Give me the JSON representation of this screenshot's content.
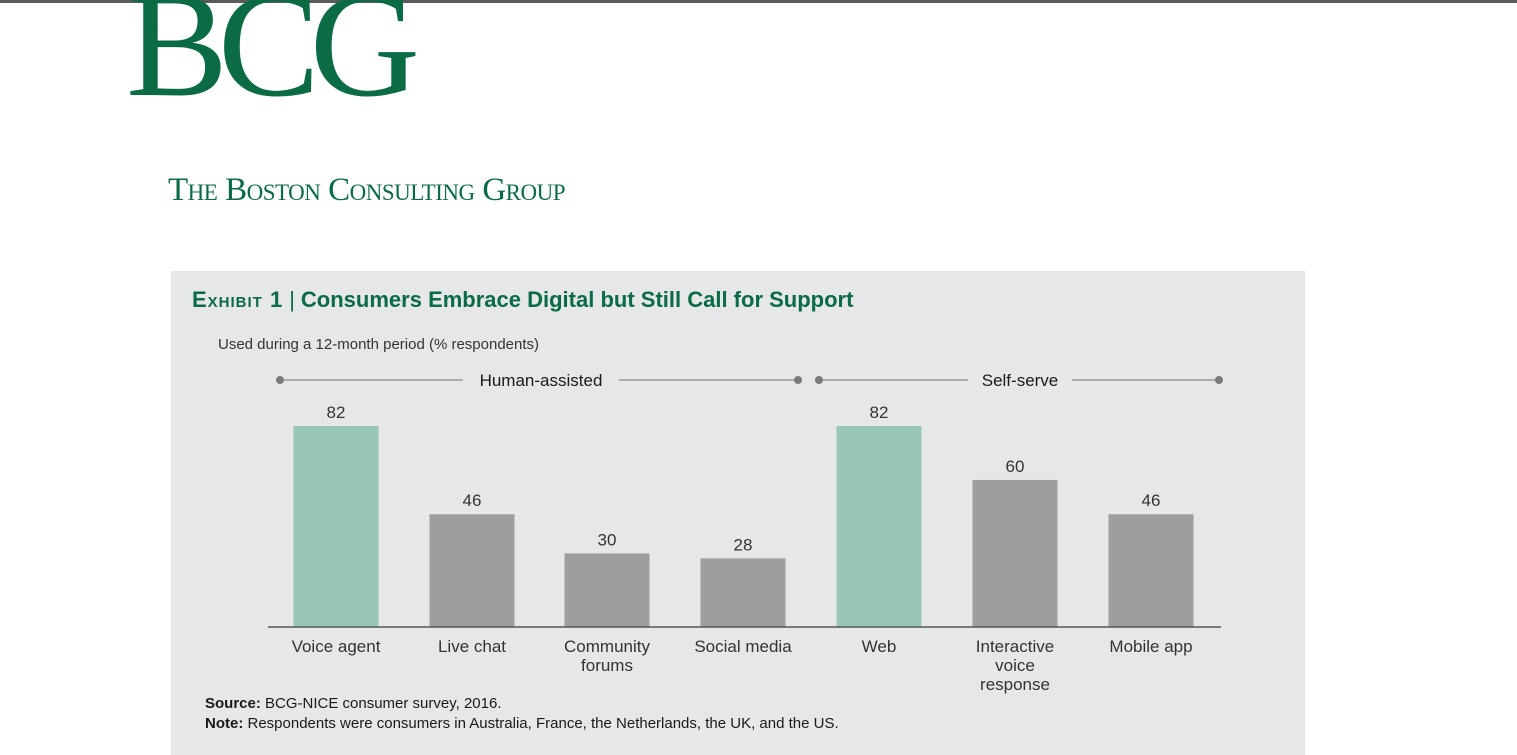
{
  "header": {
    "logo_text": "BCG",
    "company_name": "The Boston Consulting Group"
  },
  "exhibit": {
    "label": "Exhibit 1",
    "title": "Consumers Embrace Digital but Still Call for Support",
    "subtitle": "Used during a 12-month period (% respondents)"
  },
  "colors": {
    "brand_green": "#0a6b45",
    "highlight_bar": "#98c7b9",
    "default_bar": "#9d9ea0",
    "panel_bg": "#e6e7e8"
  },
  "chart_data": {
    "type": "bar",
    "groups": [
      {
        "name": "Human-assisted",
        "categories": [
          "Voice agent",
          "Live chat",
          "Community forums",
          "Social media"
        ]
      },
      {
        "name": "Self-serve",
        "categories": [
          "Web",
          "Interactive voice response",
          "Mobile app"
        ]
      }
    ],
    "categories": [
      "Voice agent",
      "Live chat",
      "Community forums",
      "Social media",
      "Web",
      "Interactive voice response",
      "Mobile app"
    ],
    "category_lines": [
      [
        "Voice agent"
      ],
      [
        "Live chat"
      ],
      [
        "Community",
        "forums"
      ],
      [
        "Social media"
      ],
      [
        "Web"
      ],
      [
        "Interactive",
        "voice",
        "response"
      ],
      [
        "Mobile app"
      ]
    ],
    "values": [
      82,
      46,
      30,
      28,
      82,
      60,
      46
    ],
    "highlighted": [
      true,
      false,
      false,
      false,
      true,
      false,
      false
    ],
    "ylim": [
      0,
      82
    ],
    "grid": false,
    "data_labels": true
  },
  "footer": {
    "source_label": "Source:",
    "source_text": " BCG-NICE consumer survey, 2016.",
    "note_label": "Note:",
    "note_text": " Respondents were consumers in Australia, France, the Netherlands, the UK, and the US."
  }
}
